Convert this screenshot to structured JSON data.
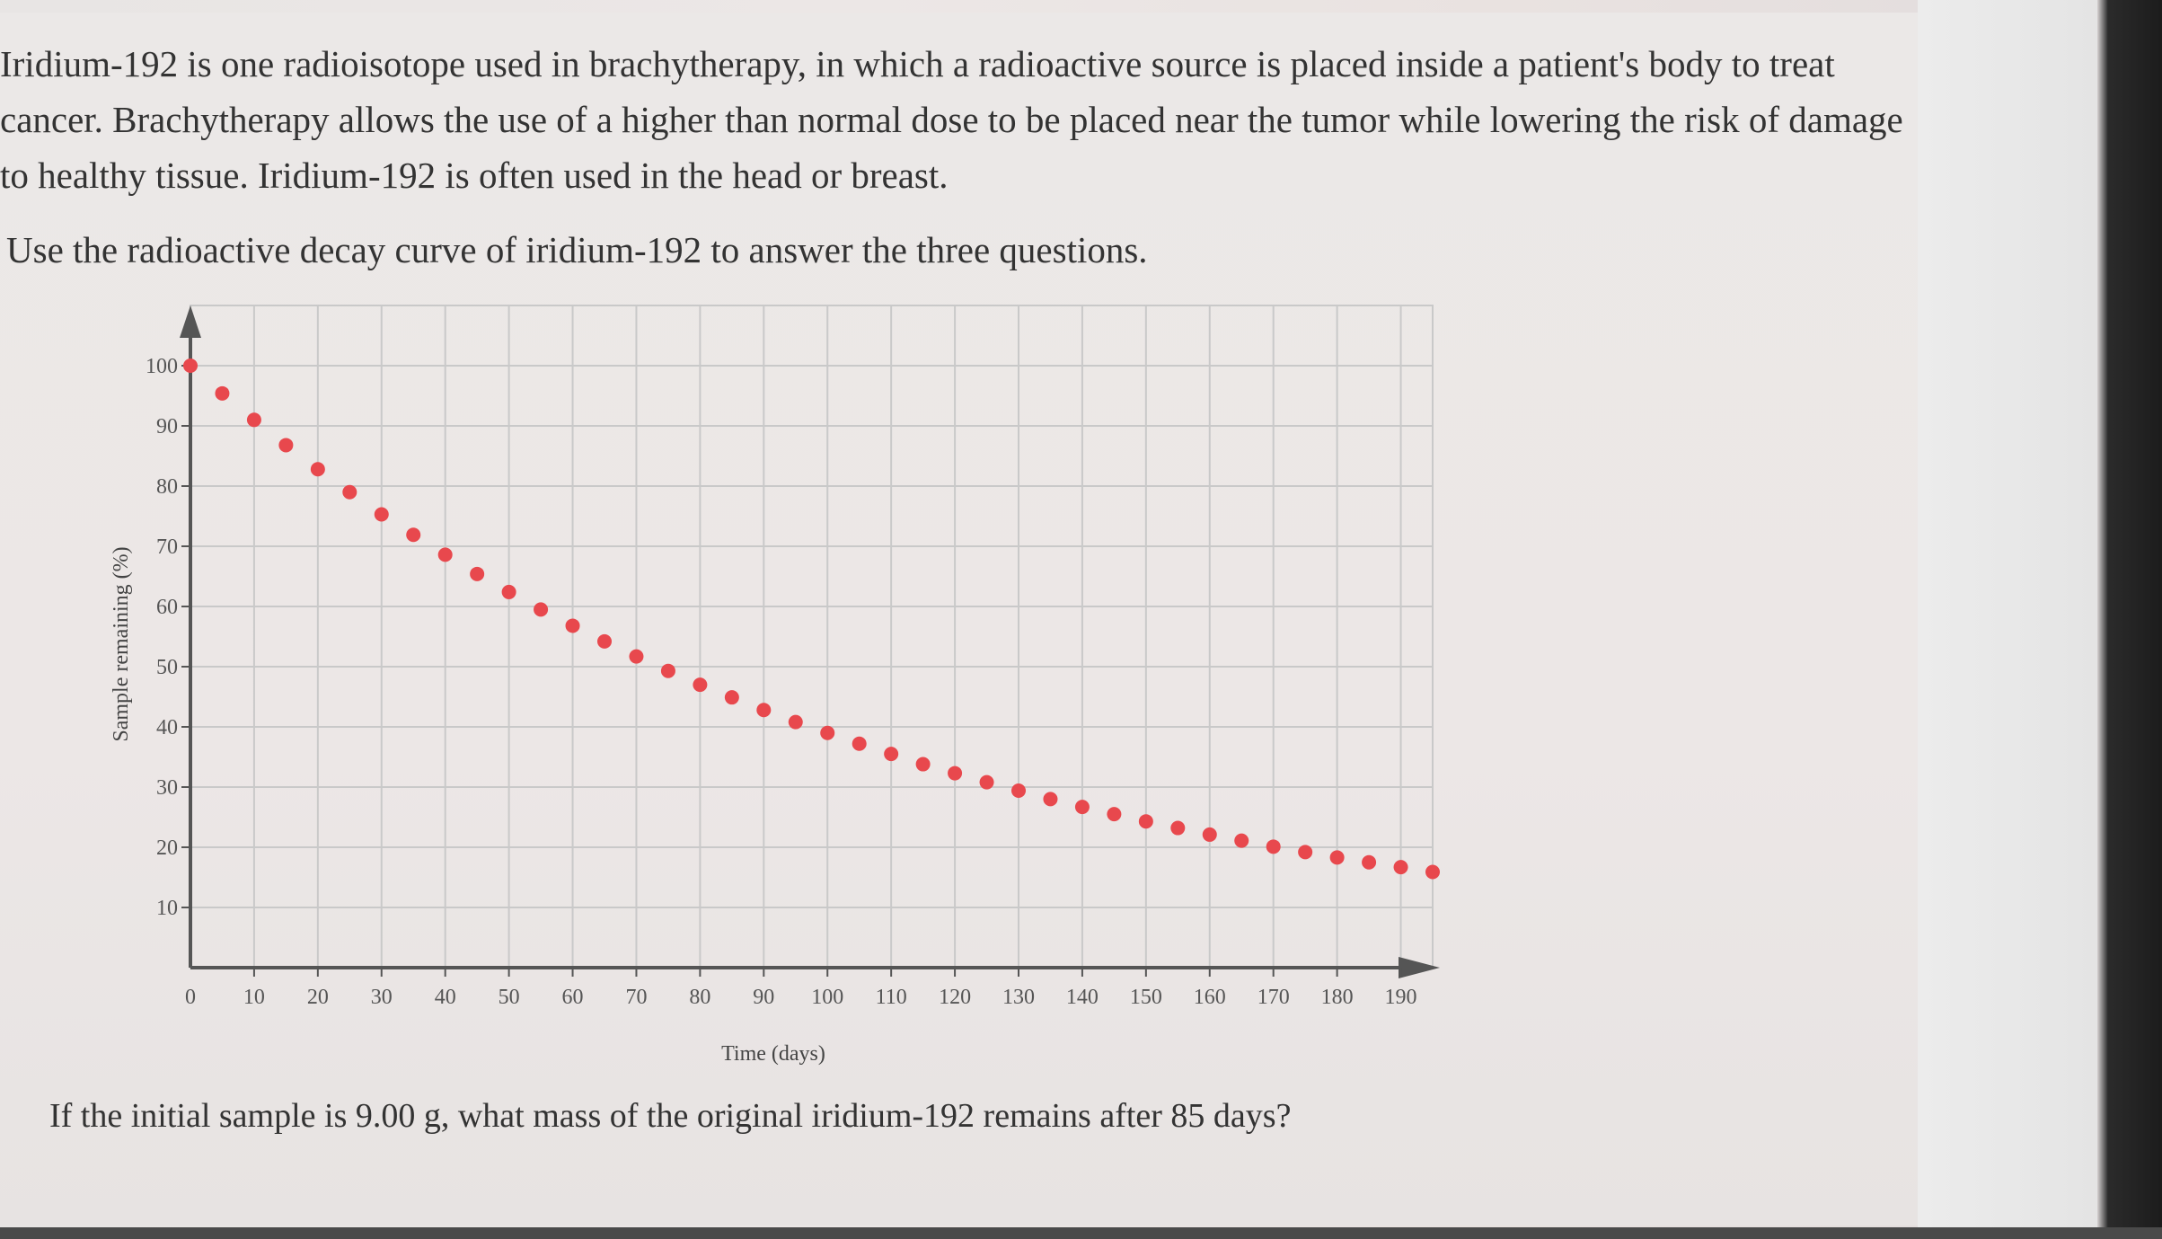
{
  "passage": {
    "intro": "Iridium-192 is one radioisotope used in brachytherapy, in which a radioactive source is placed inside a patient's body to treat cancer. Brachytherapy allows the use of a higher than normal dose to be placed near the tumor while lowering the risk of damage to healthy tissue. Iridium-192 is often used in the head or breast.",
    "instruction": "Use the radioactive decay curve of iridium-192 to answer the three questions.",
    "question": "If the initial sample is 9.00 g, what mass of the original iridium-192 remains after 85 days?"
  },
  "colors": {
    "background": "#ece7e6",
    "text": "#333333",
    "points": "#e8484d",
    "grid": "#c9c9c9",
    "axis": "#555555"
  },
  "chart_data": {
    "type": "scatter",
    "xlabel": "Time (days)",
    "ylabel": "Sample remaining (%)",
    "xlim": [
      0,
      195
    ],
    "ylim": [
      0,
      110
    ],
    "x_ticks": [
      0,
      10,
      20,
      30,
      40,
      50,
      60,
      70,
      80,
      90,
      100,
      110,
      120,
      130,
      140,
      150,
      160,
      170,
      180,
      190
    ],
    "y_ticks": [
      10,
      20,
      30,
      40,
      50,
      60,
      70,
      80,
      90,
      100
    ],
    "grid": true,
    "series": [
      {
        "x": [
          0,
          5,
          10,
          15,
          20,
          25,
          30,
          35,
          40,
          45,
          50,
          55,
          60,
          65,
          70,
          75,
          80,
          85,
          90,
          95,
          100,
          105,
          110,
          115,
          120,
          125,
          130,
          135,
          140,
          145,
          150,
          155,
          160,
          165,
          170,
          175,
          180,
          185,
          190,
          195
        ],
        "y": [
          100,
          95.4,
          91.0,
          86.8,
          82.8,
          79.0,
          75.3,
          71.9,
          68.6,
          65.4,
          62.4,
          59.5,
          56.8,
          54.2,
          51.7,
          49.3,
          47.0,
          44.9,
          42.8,
          40.8,
          39.0,
          37.2,
          35.5,
          33.8,
          32.3,
          30.8,
          29.4,
          28.0,
          26.7,
          25.5,
          24.3,
          23.2,
          22.1,
          21.1,
          20.1,
          19.2,
          18.3,
          17.5,
          16.7,
          15.9
        ]
      }
    ]
  }
}
